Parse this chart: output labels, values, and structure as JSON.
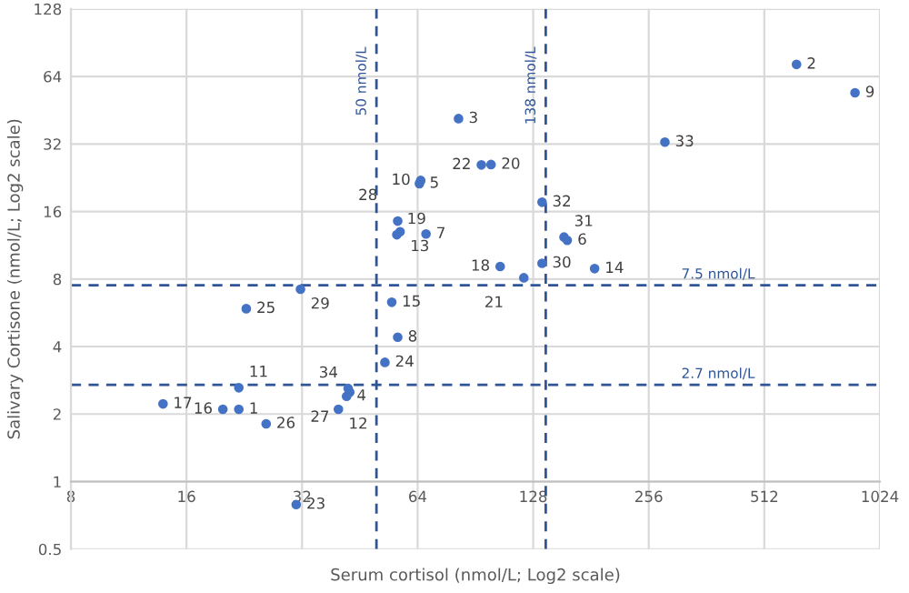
{
  "chart_data": {
    "type": "scatter",
    "xlabel": "Serum cortisol (nmol/L; Log2 scale)",
    "ylabel": "Salivary Cortisone (nmol/L; Log2 scale)",
    "log": "xy",
    "xlim": [
      8,
      1024
    ],
    "ylim": [
      0.5,
      128
    ],
    "xticks": [
      8,
      16,
      32,
      64,
      128,
      256,
      512,
      1024
    ],
    "yticks": [
      0.5,
      1,
      2,
      4,
      8,
      16,
      32,
      64,
      128
    ],
    "grid": true,
    "marker": "circle",
    "series": [
      {
        "color": "#4472c4",
        "x": [
          21.9,
          621,
          81.8,
          41.8,
          64.7,
          157,
          67.3,
          56.8,
          882,
          65.2,
          21.9,
          39.8,
          57.6,
          185,
          54.8,
          19.9,
          13.9,
          105,
          56.5,
          99.4,
          121,
          93.8,
          30.9,
          52.6,
          22.9,
          25.8,
          42.6,
          56.8,
          31.7,
          135,
          154,
          135,
          282,
          42.2
        ],
        "values": [
          2.1,
          72.4,
          41.5,
          2.4,
          21.3,
          11.9,
          12.7,
          4.4,
          54.1,
          22.0,
          2.62,
          2.1,
          13.0,
          8.9,
          6.3,
          2.1,
          2.22,
          9.1,
          12.6,
          25.9,
          8.1,
          25.8,
          0.79,
          3.4,
          5.9,
          1.81,
          2.5,
          14.5,
          7.2,
          9.4,
          12.3,
          17.6,
          32.6,
          2.6
        ]
      }
    ],
    "annotations": [
      {
        "text": "1",
        "x": 21.9,
        "y": 2.1
      },
      {
        "text": "2",
        "x": 621,
        "y": 72.4
      },
      {
        "text": "3",
        "x": 81.8,
        "y": 41.5
      },
      {
        "text": "4",
        "x": 41.8,
        "y": 2.4
      },
      {
        "text": "5",
        "x": 64.7,
        "y": 21.3
      },
      {
        "text": "6",
        "x": 157,
        "y": 11.9
      },
      {
        "text": "7",
        "x": 67.3,
        "y": 12.7
      },
      {
        "text": "8",
        "x": 56.8,
        "y": 4.4
      },
      {
        "text": "9",
        "x": 882,
        "y": 54.1
      },
      {
        "text": "10",
        "x": 65.2,
        "y": 22.0
      },
      {
        "text": "11",
        "x": 21.9,
        "y": 2.62
      },
      {
        "text": "12",
        "x": 39.8,
        "y": 2.1
      },
      {
        "text": "13",
        "x": 57.6,
        "y": 13.0
      },
      {
        "text": "14",
        "x": 185,
        "y": 8.9
      },
      {
        "text": "15",
        "x": 54.8,
        "y": 6.3
      },
      {
        "text": "16",
        "x": 19.9,
        "y": 2.1
      },
      {
        "text": "17",
        "x": 13.9,
        "y": 2.22
      },
      {
        "text": "18",
        "x": 105,
        "y": 9.1
      },
      {
        "text": "19",
        "x": 56.5,
        "y": 12.6
      },
      {
        "text": "20",
        "x": 99.4,
        "y": 25.9
      },
      {
        "text": "21",
        "x": 121,
        "y": 8.1
      },
      {
        "text": "22",
        "x": 93.8,
        "y": 25.8
      },
      {
        "text": "23",
        "x": 30.9,
        "y": 0.79
      },
      {
        "text": "24",
        "x": 52.6,
        "y": 3.4
      },
      {
        "text": "25",
        "x": 22.9,
        "y": 5.9
      },
      {
        "text": "26",
        "x": 25.8,
        "y": 1.81
      },
      {
        "text": "27",
        "x": 42.6,
        "y": 2.5
      },
      {
        "text": "28",
        "x": 56.8,
        "y": 14.5
      },
      {
        "text": "29",
        "x": 31.7,
        "y": 7.2
      },
      {
        "text": "30",
        "x": 135,
        "y": 9.4
      },
      {
        "text": "31",
        "x": 154,
        "y": 12.3
      },
      {
        "text": "32",
        "x": 135,
        "y": 17.6
      },
      {
        "text": "33",
        "x": 282,
        "y": 32.6
      },
      {
        "text": "34",
        "x": 42.2,
        "y": 2.6
      }
    ],
    "ref_lines": [
      {
        "axis": "x",
        "value": 50,
        "label": "50 nmol/L",
        "color": "#2f5597",
        "line_style": "dashed"
      },
      {
        "axis": "x",
        "value": 138,
        "label": "138 nmol/L",
        "color": "#2f5597",
        "line_style": "dashed"
      },
      {
        "axis": "y",
        "value": 7.5,
        "label": "7.5 nmol/L",
        "color": "#2f5597",
        "line_style": "dashed"
      },
      {
        "axis": "y",
        "value": 2.7,
        "label": "2.7 nmol/L",
        "color": "#2f5597",
        "line_style": "dashed"
      }
    ]
  }
}
